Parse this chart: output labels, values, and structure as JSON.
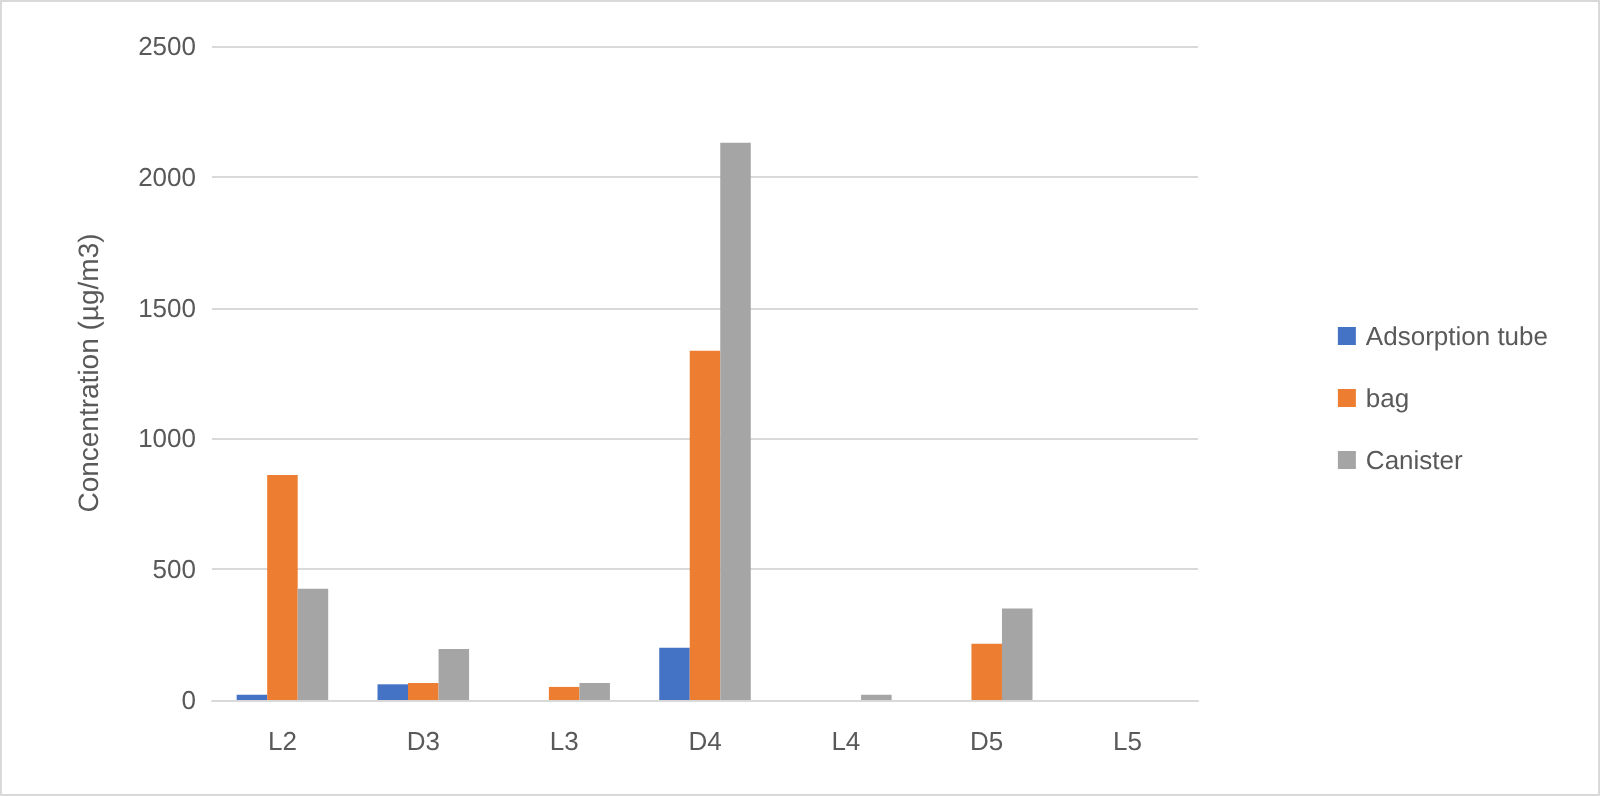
{
  "chart_data": {
    "type": "bar",
    "ylabel": "Concentration (µg/m3)",
    "categories": [
      "L2",
      "D3",
      "L3",
      "D4",
      "L4",
      "D5",
      "L5"
    ],
    "series": [
      {
        "name": "Adsorption tube",
        "color": "#4472c4",
        "values": [
          20,
          60,
          0,
          200,
          0,
          0,
          0
        ]
      },
      {
        "name": "bag",
        "color": "#ed7d31",
        "values": [
          860,
          65,
          50,
          1335,
          0,
          215,
          0
        ]
      },
      {
        "name": "Canister",
        "color": "#a5a5a5",
        "values": [
          425,
          195,
          65,
          2130,
          20,
          350,
          0
        ]
      }
    ],
    "ylim": [
      0,
      2500
    ],
    "yticks": [
      0,
      500,
      1000,
      1500,
      2000,
      2500
    ],
    "grid": "y",
    "legend": "right"
  }
}
